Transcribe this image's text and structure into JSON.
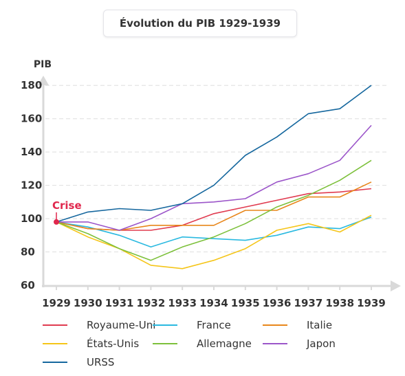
{
  "chart_data": {
    "type": "line",
    "title": "Évolution du PIB 1929-1939",
    "ylabel": "PIB",
    "xlabel": "",
    "ylim": [
      60,
      190
    ],
    "yticks": [
      60,
      80,
      100,
      120,
      140,
      160,
      180
    ],
    "x": [
      "1929",
      "1930",
      "1931",
      "1932",
      "1933",
      "1934",
      "1935",
      "1936",
      "1937",
      "1938",
      "1939"
    ],
    "grid": "horizontal dashed",
    "legend_position": "bottom",
    "annotation": {
      "label": "Crise",
      "x": "1929",
      "y": 98,
      "color": "#e0274d"
    },
    "series": [
      {
        "name": "Royaume-Uni",
        "color": "#e03a4f",
        "values": [
          98,
          94,
          93,
          93,
          96,
          103,
          107,
          111,
          115,
          116,
          118
        ]
      },
      {
        "name": "France",
        "color": "#29b9e0",
        "values": [
          98,
          95,
          90,
          83,
          89,
          88,
          87,
          90,
          95,
          94,
          101
        ]
      },
      {
        "name": "Italie",
        "color": "#e8861a",
        "values": [
          98,
          94,
          93,
          96,
          96,
          96,
          105,
          105,
          113,
          113,
          122
        ]
      },
      {
        "name": "États-Unis",
        "color": "#f5c518",
        "values": [
          98,
          89,
          82,
          72,
          70,
          75,
          82,
          93,
          97,
          92,
          102
        ]
      },
      {
        "name": "Allemagne",
        "color": "#7cc03a",
        "values": [
          98,
          91,
          82,
          75,
          83,
          89,
          97,
          107,
          114,
          123,
          135
        ]
      },
      {
        "name": "Japon",
        "color": "#9b55c9",
        "values": [
          98,
          98,
          93,
          100,
          109,
          110,
          112,
          122,
          127,
          135,
          156
        ]
      },
      {
        "name": "URSS",
        "color": "#15679e",
        "values": [
          98,
          104,
          106,
          105,
          109,
          120,
          138,
          149,
          163,
          166,
          180
        ]
      }
    ]
  }
}
